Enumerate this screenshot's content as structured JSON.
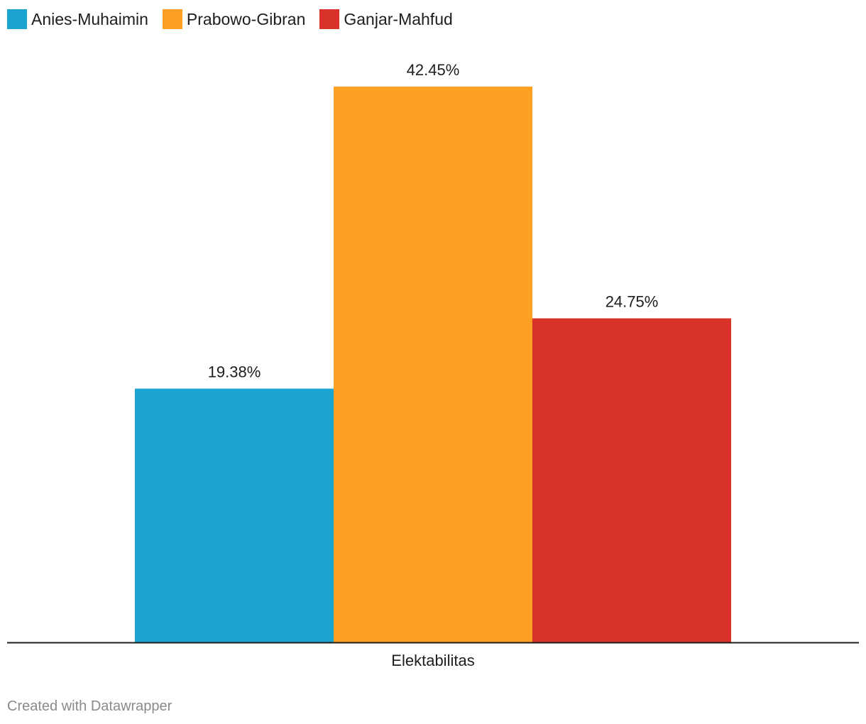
{
  "chart_data": {
    "type": "bar",
    "categories": [
      "Elektabilitas"
    ],
    "series": [
      {
        "name": "Anies-Muhaimin",
        "values": [
          19.38
        ],
        "label": "19.38%",
        "color": "#1ba3cf"
      },
      {
        "name": "Prabowo-Gibran",
        "values": [
          42.45
        ],
        "label": "42.45%",
        "color": "#ffa024"
      },
      {
        "name": "Ganjar-Mahfud",
        "values": [
          24.75
        ],
        "label": "24.75%",
        "color": "#d9322b"
      }
    ],
    "title": "",
    "xlabel": "",
    "ylabel": "",
    "ylim": [
      0,
      42.45
    ],
    "grid": false,
    "legend": "top-left"
  },
  "footer": {
    "credit": "Created with Datawrapper"
  }
}
